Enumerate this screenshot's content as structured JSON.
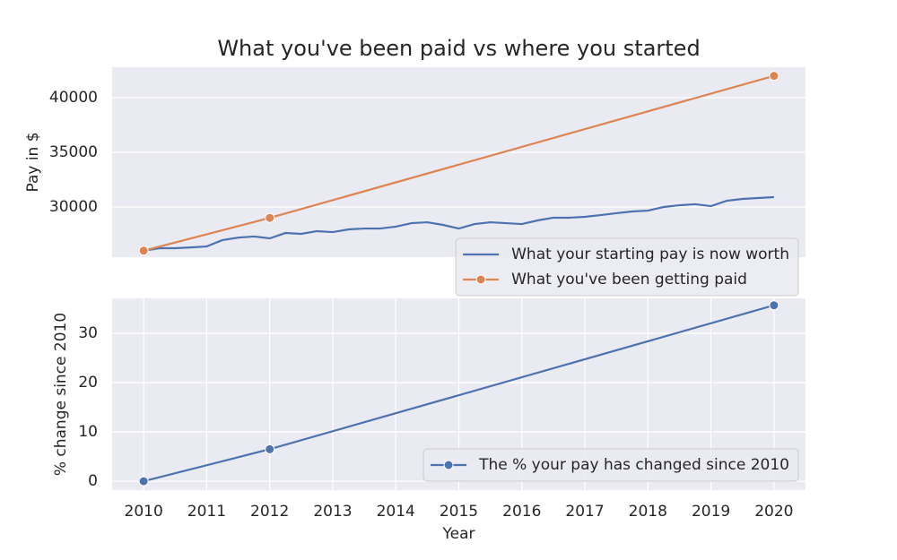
{
  "chart_data": [
    {
      "type": "line",
      "title": "What you've been paid vs where you started",
      "ylabel": "Pay in $",
      "xlim": [
        2009.5,
        2020.5
      ],
      "ylim": [
        25410,
        42790
      ],
      "yticks": [
        30000,
        35000,
        40000
      ],
      "grid": true,
      "legend": "lower right",
      "series": [
        {
          "name": "What your starting pay is now worth",
          "color": "#4c72b0",
          "markers": false,
          "x": [
            2010,
            2010.25,
            2010.5,
            2010.75,
            2011,
            2011.25,
            2011.5,
            2011.75,
            2012,
            2012.25,
            2012.5,
            2012.75,
            2013,
            2013.25,
            2013.5,
            2013.75,
            2014,
            2014.25,
            2014.5,
            2014.75,
            2015,
            2015.25,
            2015.5,
            2015.75,
            2016,
            2016.25,
            2016.5,
            2016.75,
            2017,
            2017.25,
            2017.5,
            2017.75,
            2018,
            2018.25,
            2018.5,
            2018.75,
            2019,
            2019.25,
            2019.5,
            2019.75,
            2020
          ],
          "values": [
            26000,
            26230,
            26230,
            26300,
            26390,
            26970,
            27200,
            27300,
            27130,
            27620,
            27540,
            27790,
            27700,
            27950,
            28030,
            28030,
            28200,
            28520,
            28600,
            28360,
            28030,
            28440,
            28600,
            28520,
            28440,
            28770,
            29020,
            29020,
            29100,
            29260,
            29430,
            29590,
            29670,
            30000,
            30160,
            30250,
            30080,
            30570,
            30740,
            30820,
            30900
          ]
        },
        {
          "name": "What you've been getting paid",
          "color": "#dd8452",
          "markers": true,
          "x": [
            2010,
            2012,
            2020
          ],
          "values": [
            26000,
            29000,
            42000
          ]
        }
      ]
    },
    {
      "type": "line",
      "xlabel": "Year",
      "ylabel": "% change since 2010",
      "xlim": [
        2009.5,
        2020.5
      ],
      "ylim": [
        -1.8,
        37.1
      ],
      "xticks": [
        2010,
        2011,
        2012,
        2013,
        2014,
        2015,
        2016,
        2017,
        2018,
        2019,
        2020
      ],
      "yticks": [
        0,
        10,
        20,
        30
      ],
      "grid": true,
      "legend": "lower right",
      "series": [
        {
          "name": "The % your pay has changed since 2010",
          "color": "#4c72b0",
          "markers": true,
          "x": [
            2010,
            2012,
            2020
          ],
          "values": [
            0,
            6.5,
            35.7
          ]
        }
      ]
    }
  ]
}
